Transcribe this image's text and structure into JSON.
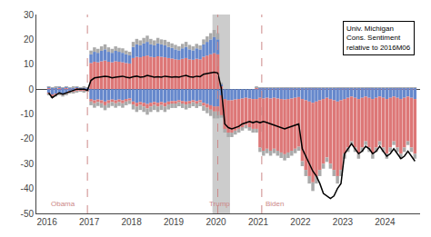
{
  "chart_data": {
    "type": "bar",
    "stacked": true,
    "grid": false,
    "xlim": [
      2015.75,
      2024.83
    ],
    "xticks": [
      2016,
      2017,
      2018,
      2019,
      2020,
      2021,
      2022,
      2023,
      2024
    ],
    "ylim": [
      -50,
      30
    ],
    "yticks": [
      -50,
      -40,
      -30,
      -20,
      -10,
      0,
      10,
      20,
      30
    ],
    "x": [
      2016.042,
      2016.125,
      2016.208,
      2016.292,
      2016.375,
      2016.458,
      2016.542,
      2016.625,
      2016.708,
      2016.792,
      2016.875,
      2016.958,
      2017.042,
      2017.125,
      2017.208,
      2017.292,
      2017.375,
      2017.458,
      2017.542,
      2017.625,
      2017.708,
      2017.792,
      2017.875,
      2017.958,
      2018.042,
      2018.125,
      2018.208,
      2018.292,
      2018.375,
      2018.458,
      2018.542,
      2018.625,
      2018.708,
      2018.792,
      2018.875,
      2018.958,
      2019.042,
      2019.125,
      2019.208,
      2019.292,
      2019.375,
      2019.458,
      2019.542,
      2019.625,
      2019.708,
      2019.792,
      2019.875,
      2019.958,
      2020.042,
      2020.125,
      2020.208,
      2020.292,
      2020.375,
      2020.458,
      2020.542,
      2020.625,
      2020.708,
      2020.792,
      2020.875,
      2020.958,
      2021.042,
      2021.125,
      2021.208,
      2021.292,
      2021.375,
      2021.458,
      2021.542,
      2021.625,
      2021.708,
      2021.792,
      2021.875,
      2021.958,
      2022.042,
      2022.125,
      2022.208,
      2022.292,
      2022.375,
      2022.458,
      2022.542,
      2022.625,
      2022.708,
      2022.792,
      2022.875,
      2022.958,
      2023.042,
      2023.125,
      2023.208,
      2023.292,
      2023.375,
      2023.458,
      2023.542,
      2023.625,
      2023.708,
      2023.792,
      2023.875,
      2023.958,
      2024.042,
      2024.125,
      2024.208,
      2024.292,
      2024.375,
      2024.458,
      2024.542,
      2024.625,
      2024.708
    ],
    "series": [
      {
        "type": "bar",
        "color": "#dd7777",
        "values": [
          0.5,
          0.3,
          0.4,
          0.5,
          0.4,
          0.5,
          0.3,
          0.4,
          0.5,
          0.3,
          0.4,
          0.3,
          10.5,
          11.0,
          10.8,
          11.2,
          11.5,
          11.0,
          10.8,
          11.2,
          11.0,
          10.8,
          10.5,
          10.3,
          12.5,
          13.0,
          12.8,
          13.2,
          13.5,
          13.0,
          12.8,
          13.2,
          13.0,
          12.8,
          12.5,
          12.3,
          12.0,
          11.8,
          12.2,
          12.5,
          12.0,
          11.8,
          12.2,
          12.0,
          13.0,
          13.5,
          14.0,
          14.5,
          14.0,
          1.5,
          0.0,
          0.0,
          0.0,
          0.0,
          0.0,
          0.0,
          0.0,
          0.0,
          0.0,
          0.5,
          0.3,
          0.3,
          0.3,
          0.3,
          0.3,
          0.3,
          0.3,
          0.3,
          0.3,
          0.3,
          0.3,
          0.3,
          0.3,
          0.3,
          0.3,
          0.3,
          0.3,
          0.3,
          0.3,
          0.3,
          0.3,
          0.3,
          0.3,
          0.3,
          0.3,
          0.3,
          0.3,
          0.3,
          0.3,
          0.3,
          0.3,
          0.3,
          0.3,
          0.3,
          0.3,
          0.3,
          0.3,
          0.3,
          0.3,
          0.3,
          0.3,
          0.3,
          0.3,
          0.3,
          0.3
        ]
      },
      {
        "type": "bar",
        "color": "#6688cc",
        "values": [
          0.3,
          0.2,
          0.3,
          0.3,
          0.2,
          0.3,
          0.2,
          0.3,
          0.3,
          0.2,
          0.3,
          0.2,
          3.5,
          4.0,
          3.8,
          4.2,
          4.5,
          4.0,
          3.8,
          4.2,
          4.0,
          3.8,
          3.5,
          3.3,
          4.5,
          5.0,
          4.8,
          5.2,
          5.5,
          5.0,
          4.8,
          5.2,
          5.0,
          4.8,
          4.5,
          4.3,
          4.0,
          3.8,
          4.2,
          4.5,
          4.0,
          3.8,
          4.2,
          4.0,
          5.0,
          5.5,
          6.0,
          6.5,
          6.0,
          0.5,
          0.0,
          0.0,
          0.0,
          0.0,
          0.0,
          0.0,
          0.0,
          0.0,
          0.0,
          0.2,
          0.2,
          0.2,
          0.2,
          0.2,
          0.2,
          0.2,
          0.2,
          0.2,
          0.2,
          0.2,
          0.2,
          0.2,
          0.2,
          0.2,
          0.2,
          0.2,
          0.2,
          0.2,
          0.2,
          0.2,
          0.2,
          0.2,
          0.2,
          0.2,
          0.2,
          0.2,
          0.2,
          0.2,
          0.2,
          0.2,
          0.2,
          0.2,
          0.2,
          0.2,
          0.2,
          0.2,
          0.2,
          0.2,
          0.2,
          0.2,
          0.2,
          0.2,
          0.2,
          0.2,
          0.2
        ]
      },
      {
        "type": "bar",
        "color": "#aaaaaa",
        "values": [
          0.2,
          0.1,
          0.2,
          0.2,
          0.1,
          0.2,
          0.1,
          0.2,
          0.2,
          0.1,
          0.2,
          0.1,
          1.5,
          1.8,
          1.6,
          1.8,
          2.0,
          1.8,
          1.6,
          1.8,
          1.6,
          1.8,
          1.5,
          1.4,
          2.0,
          2.2,
          2.0,
          2.2,
          2.5,
          2.2,
          2.0,
          2.2,
          2.0,
          2.2,
          2.0,
          1.8,
          1.8,
          1.6,
          1.8,
          2.0,
          1.8,
          1.6,
          1.8,
          1.6,
          2.0,
          2.2,
          2.5,
          2.8,
          2.5,
          0.3,
          0.0,
          0.0,
          0.0,
          0.0,
          0.0,
          0.0,
          0.0,
          0.0,
          0.0,
          0.1,
          0.1,
          0.1,
          0.1,
          0.1,
          0.1,
          0.1,
          0.1,
          0.1,
          0.1,
          0.1,
          0.1,
          0.1,
          0.1,
          0.1,
          0.1,
          0.1,
          0.1,
          0.1,
          0.1,
          0.1,
          0.1,
          0.1,
          0.1,
          0.1,
          0.1,
          0.1,
          0.1,
          0.1,
          0.1,
          0.1,
          0.1,
          0.1,
          0.1,
          0.1,
          0.1,
          0.1,
          0.1,
          0.1,
          0.1,
          0.1,
          0.1,
          0.1,
          0.1,
          0.1,
          0.1
        ]
      },
      {
        "type": "bar",
        "color": "#6688cc",
        "values": [
          -1.5,
          -2.5,
          -2.0,
          -1.5,
          -2.0,
          -1.5,
          -1.0,
          -1.0,
          -0.5,
          -0.5,
          -0.5,
          -0.5,
          -4.0,
          -4.5,
          -4.2,
          -4.5,
          -5.0,
          -4.5,
          -4.2,
          -4.5,
          -4.2,
          -4.5,
          -4.0,
          -3.8,
          -5.0,
          -5.5,
          -5.2,
          -5.5,
          -6.0,
          -5.5,
          -5.2,
          -5.5,
          -5.2,
          -5.5,
          -5.0,
          -4.8,
          -4.8,
          -4.5,
          -4.8,
          -5.0,
          -4.8,
          -4.5,
          -4.8,
          -4.5,
          -5.5,
          -6.0,
          -6.5,
          -7.0,
          -7.0,
          -2.5,
          -4.0,
          -4.5,
          -4.5,
          -4.2,
          -4.0,
          -3.8,
          -3.5,
          -3.8,
          -4.0,
          -4.0,
          -3.5,
          -3.8,
          -3.5,
          -3.8,
          -3.5,
          -3.8,
          -4.0,
          -4.2,
          -4.0,
          -3.8,
          -3.5,
          -3.2,
          -4.0,
          -4.5,
          -5.0,
          -5.5,
          -5.0,
          -4.5,
          -4.0,
          -3.5,
          -4.0,
          -4.5,
          -5.0,
          -4.5,
          -4.0,
          -3.5,
          -3.0,
          -3.5,
          -4.0,
          -3.5,
          -3.0,
          -3.5,
          -4.0,
          -3.5,
          -3.0,
          -3.5,
          -4.0,
          -3.5,
          -3.0,
          -3.5,
          -4.0,
          -3.5,
          -3.0,
          -3.5,
          -4.0
        ]
      },
      {
        "type": "bar",
        "color": "#dd7777",
        "values": [
          -0.5,
          -0.3,
          -0.4,
          -0.5,
          -0.4,
          -0.5,
          -0.3,
          -0.4,
          -0.5,
          -0.3,
          -0.4,
          -0.3,
          -1.0,
          -1.2,
          -1.0,
          -1.2,
          -1.5,
          -1.2,
          -1.0,
          -1.2,
          -1.0,
          -1.2,
          -1.0,
          -0.8,
          -1.2,
          -1.5,
          -1.2,
          -1.5,
          -1.8,
          -1.5,
          -1.2,
          -1.5,
          -1.2,
          -1.5,
          -1.2,
          -1.0,
          -1.0,
          -0.8,
          -1.0,
          -1.2,
          -1.0,
          -0.8,
          -1.0,
          -0.8,
          -1.2,
          -1.5,
          -1.8,
          -2.0,
          -2.0,
          -8.0,
          -12.0,
          -13.0,
          -13.0,
          -12.5,
          -12.0,
          -11.5,
          -11.0,
          -11.5,
          -12.0,
          -12.0,
          -20.0,
          -21.0,
          -20.5,
          -21.0,
          -20.5,
          -21.0,
          -21.5,
          -22.0,
          -21.5,
          -21.0,
          -20.5,
          -20.0,
          -25.0,
          -28.0,
          -30.0,
          -32.0,
          -30.0,
          -28.0,
          -26.0,
          -24.0,
          -26.0,
          -28.0,
          -30.0,
          -28.0,
          -22.0,
          -20.0,
          -18.0,
          -20.0,
          -22.0,
          -20.0,
          -18.0,
          -20.0,
          -22.0,
          -20.0,
          -18.0,
          -20.0,
          -22.0,
          -20.0,
          -18.0,
          -20.0,
          -22.0,
          -20.0,
          -18.0,
          -20.0,
          -22.0
        ]
      },
      {
        "type": "bar",
        "color": "#aaaaaa",
        "values": [
          -0.5,
          -0.8,
          -0.6,
          -0.5,
          -0.6,
          -0.5,
          -0.3,
          -0.3,
          -0.2,
          -0.2,
          -0.2,
          -0.2,
          -1.5,
          -1.8,
          -1.6,
          -1.8,
          -2.0,
          -1.8,
          -1.6,
          -1.8,
          -1.6,
          -1.8,
          -1.5,
          -1.4,
          -2.0,
          -2.2,
          -2.0,
          -2.2,
          -2.5,
          -2.2,
          -2.0,
          -2.2,
          -2.0,
          -2.2,
          -2.0,
          -1.8,
          -1.8,
          -1.6,
          -1.8,
          -2.0,
          -1.8,
          -1.6,
          -1.8,
          -1.6,
          -2.0,
          -2.2,
          -2.5,
          -2.8,
          -2.8,
          -1.0,
          -1.5,
          -1.8,
          -1.8,
          -1.6,
          -1.5,
          -1.4,
          -1.3,
          -1.4,
          -1.5,
          -1.5,
          -1.8,
          -2.0,
          -1.8,
          -2.0,
          -1.8,
          -2.0,
          -2.2,
          -2.5,
          -2.2,
          -2.0,
          -1.8,
          -1.6,
          -2.0,
          -2.5,
          -3.0,
          -3.5,
          -3.0,
          -2.5,
          -2.0,
          -1.8,
          -2.0,
          -2.5,
          -3.0,
          -2.5,
          -2.0,
          -1.8,
          -1.5,
          -1.8,
          -2.0,
          -1.8,
          -1.5,
          -1.8,
          -2.0,
          -1.8,
          -1.5,
          -1.8,
          -2.0,
          -1.8,
          -1.5,
          -1.8,
          -2.0,
          -1.8,
          -1.5,
          -1.8,
          -2.0
        ]
      },
      {
        "type": "line",
        "color": "#000000",
        "values": [
          -1.5,
          -3.5,
          -2.5,
          -1.5,
          -2.0,
          -1.5,
          -1.0,
          -0.5,
          0.0,
          0.0,
          0.0,
          -0.5,
          3.5,
          4.5,
          4.8,
          5.0,
          5.2,
          5.0,
          4.5,
          4.8,
          5.0,
          5.2,
          4.8,
          4.5,
          5.0,
          5.2,
          4.8,
          5.0,
          5.5,
          5.2,
          4.8,
          5.0,
          4.8,
          5.2,
          5.0,
          4.8,
          5.0,
          4.8,
          5.2,
          5.5,
          5.0,
          4.8,
          5.2,
          5.0,
          6.0,
          6.2,
          6.5,
          6.8,
          6.5,
          0.5,
          -14.0,
          -15.5,
          -16.0,
          -15.5,
          -15.0,
          -14.0,
          -13.5,
          -13.0,
          -13.5,
          -13.0,
          -13.5,
          -13.0,
          -13.5,
          -14.0,
          -14.5,
          -15.0,
          -15.5,
          -16.0,
          -15.5,
          -15.0,
          -14.5,
          -14.0,
          -24.0,
          -27.0,
          -30.0,
          -33.0,
          -35.0,
          -38.0,
          -42.0,
          -43.0,
          -44.0,
          -43.0,
          -40.0,
          -38.0,
          -26.0,
          -24.0,
          -22.0,
          -24.0,
          -26.0,
          -25.0,
          -23.0,
          -24.0,
          -26.0,
          -25.0,
          -23.0,
          -25.0,
          -27.0,
          -26.0,
          -24.0,
          -26.0,
          -28.0,
          -27.0,
          -25.0,
          -27.0,
          -29.0
        ]
      }
    ],
    "shade": {
      "x": [
        2019.917,
        2020.333
      ],
      "color": "#cccccc"
    },
    "vlines": {
      "x": [
        2016.958,
        2020.042,
        2021.083
      ],
      "color": "#cc8888",
      "line_style": "dashed"
    },
    "annotations": [
      {
        "text": "Obama",
        "x": 2016.05,
        "y": -48.5,
        "color": "#cc8888"
      },
      {
        "text": "Trump",
        "x": 2019.8,
        "y": -48.5,
        "color": "#cc8888"
      },
      {
        "text": "Biden",
        "x": 2021.12,
        "y": -48.5,
        "color": "#cc8888"
      },
      {
        "text": "Univ. Michigan\nCons. Sentiment\nrelative to 2016M06"
      }
    ]
  }
}
